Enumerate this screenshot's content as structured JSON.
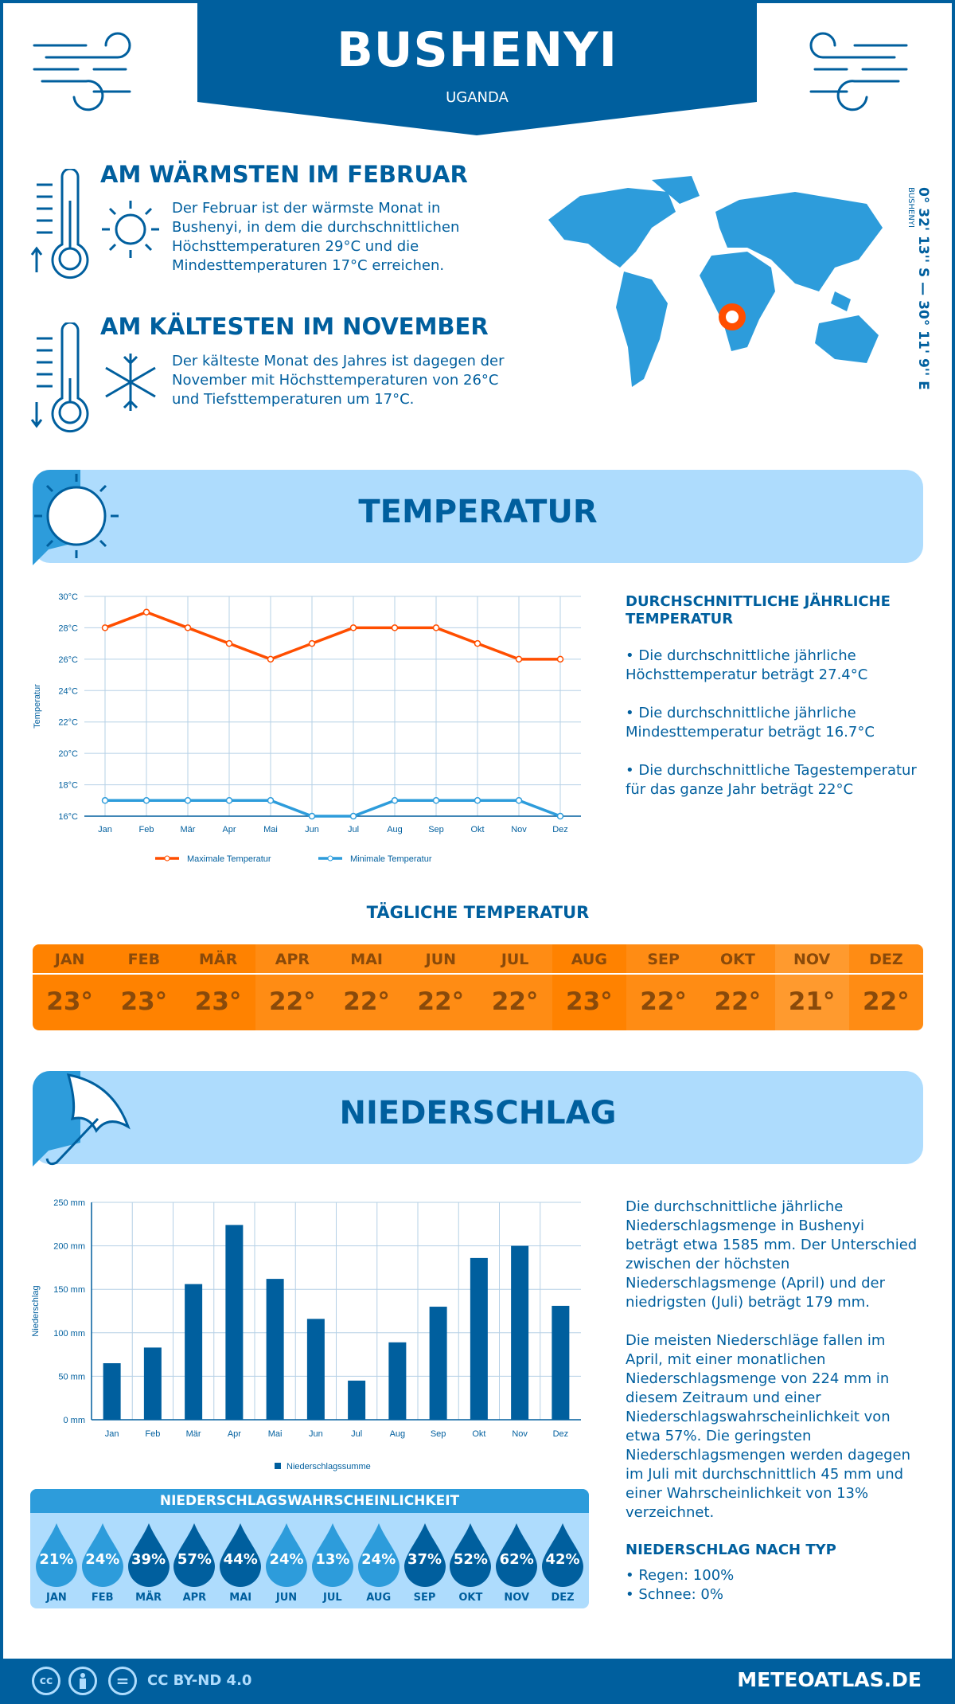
{
  "header": {
    "title": "BUSHENYI",
    "country": "UGANDA"
  },
  "warmest": {
    "heading": "AM WÄRMSTEN IM FEBRUAR",
    "text": "Der Februar ist der wärmste Monat in Bushenyi, in dem die durchschnittlichen Höchsttemperaturen 29°C und die Mindesttemperaturen 17°C erreichen."
  },
  "coldest": {
    "heading": "AM KÄLTESTEN IM NOVEMBER",
    "text": "Der kälteste Monat des Jahres ist dagegen der November mit Höchsttemperaturen von 26°C und Tiefsttemperaturen um 17°C."
  },
  "map": {
    "coordinates": "0° 32' 13'' S — 30° 11' 9'' E",
    "place": "BUSHENYI",
    "marker_color": "#ff4e00"
  },
  "temperature": {
    "section_title": "TEMPERATUR",
    "summary_title": "DURCHSCHNITTLICHE JÄHRLICHE TEMPERATUR",
    "bullets": [
      "• Die durchschnittliche jährliche Höchsttemperatur beträgt 27.4°C",
      "• Die durchschnittliche jährliche Mindesttemperatur beträgt 16.7°C",
      "• Die durchschnittliche Tagestemperatur für das ganze Jahr beträgt 22°C"
    ],
    "daily_title": "TÄGLICHE TEMPERATUR",
    "daily": [
      {
        "m": "JAN",
        "v": "23°"
      },
      {
        "m": "FEB",
        "v": "23°"
      },
      {
        "m": "MÄR",
        "v": "23°"
      },
      {
        "m": "APR",
        "v": "22°"
      },
      {
        "m": "MAI",
        "v": "22°"
      },
      {
        "m": "JUN",
        "v": "22°"
      },
      {
        "m": "JUL",
        "v": "22°"
      },
      {
        "m": "AUG",
        "v": "23°"
      },
      {
        "m": "SEP",
        "v": "22°"
      },
      {
        "m": "OKT",
        "v": "22°"
      },
      {
        "m": "NOV",
        "v": "21°"
      },
      {
        "m": "DEZ",
        "v": "22°"
      }
    ]
  },
  "precipitation": {
    "section_title": "NIEDERSCHLAG",
    "paragraph1": "Die durchschnittliche jährliche Niederschlagsmenge in Bushenyi beträgt etwa 1585 mm. Der Unterschied zwischen der höchsten Niederschlagsmenge (April) und der niedrigsten (Juli) beträgt 179 mm.",
    "paragraph2": "Die meisten Niederschläge fallen im April, mit einer monatlichen Niederschlagsmenge von 224 mm in diesem Zeitraum und einer Niederschlagswahrscheinlichkeit von etwa 57%. Die geringsten Niederschlagsmengen werden dagegen im Juli mit durchschnittlich 45 mm und einer Wahrscheinlichkeit von 13% verzeichnet.",
    "type_title": "NIEDERSCHLAG NACH TYP",
    "types": [
      "• Regen: 100%",
      "• Schnee: 0%"
    ],
    "probability_title": "NIEDERSCHLAGSWAHRSCHEINLICHKEIT",
    "probability": [
      {
        "m": "JAN",
        "p": "21%"
      },
      {
        "m": "FEB",
        "p": "24%"
      },
      {
        "m": "MÄR",
        "p": "39%"
      },
      {
        "m": "APR",
        "p": "57%"
      },
      {
        "m": "MAI",
        "p": "44%"
      },
      {
        "m": "JUN",
        "p": "24%"
      },
      {
        "m": "JUL",
        "p": "13%"
      },
      {
        "m": "AUG",
        "p": "24%"
      },
      {
        "m": "SEP",
        "p": "37%"
      },
      {
        "m": "OKT",
        "p": "52%"
      },
      {
        "m": "NOV",
        "p": "62%"
      },
      {
        "m": "DEZ",
        "p": "42%"
      }
    ]
  },
  "footer": {
    "license": "CC BY-ND 4.0",
    "site": "METEOATLAS.DE",
    "cc": "cc",
    "eq": "="
  },
  "colors": {
    "dark_blue": "#005f9e",
    "mid_blue": "#2d9cdb",
    "light_blue": "#aedcfd",
    "max_line": "#ff4e00",
    "min_line": "#2d9cdb",
    "orange": "#ff8200"
  },
  "chart_data": [
    {
      "type": "line",
      "categories": [
        "Jan",
        "Feb",
        "Mär",
        "Apr",
        "Mai",
        "Jun",
        "Jul",
        "Aug",
        "Sep",
        "Okt",
        "Nov",
        "Dez"
      ],
      "series": [
        {
          "name": "Maximale Temperatur",
          "values": [
            28,
            29,
            28,
            27,
            26,
            27,
            28,
            28,
            28,
            27,
            26,
            26
          ]
        },
        {
          "name": "Minimale Temperatur",
          "values": [
            17,
            17,
            17,
            17,
            17,
            16,
            16,
            17,
            17,
            17,
            17,
            16
          ]
        }
      ],
      "ylabel": "Temperatur",
      "ylim": [
        16,
        30
      ],
      "yticks": [
        "16°C",
        "18°C",
        "20°C",
        "22°C",
        "24°C",
        "26°C",
        "28°C",
        "30°C"
      ],
      "grid": true,
      "legend": "bottom"
    },
    {
      "type": "bar",
      "categories": [
        "Jan",
        "Feb",
        "Mär",
        "Apr",
        "Mai",
        "Jun",
        "Jul",
        "Aug",
        "Sep",
        "Okt",
        "Nov",
        "Dez"
      ],
      "series": [
        {
          "name": "Niederschlagssumme",
          "values": [
            65,
            83,
            156,
            224,
            162,
            116,
            45,
            89,
            130,
            186,
            200,
            131
          ]
        }
      ],
      "ylabel": "Niederschlag",
      "ylim": [
        0,
        250
      ],
      "yticks": [
        "0 mm",
        "50 mm",
        "100 mm",
        "150 mm",
        "200 mm",
        "250 mm"
      ],
      "grid": true,
      "legend": "bottom"
    }
  ]
}
